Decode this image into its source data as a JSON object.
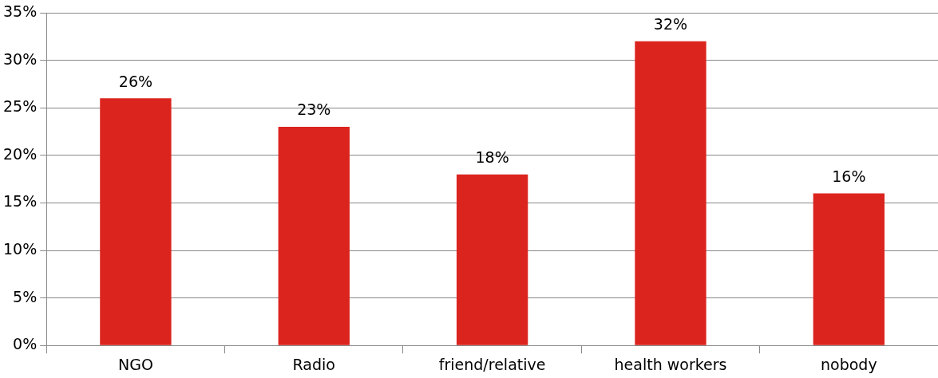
{
  "chart_data": {
    "type": "bar",
    "categories": [
      "NGO",
      "Radio",
      "friend/relative",
      "health workers",
      "nobody"
    ],
    "values": [
      26,
      23,
      18,
      32,
      16
    ],
    "value_labels": [
      "26%",
      "23%",
      "18%",
      "32%",
      "16%"
    ],
    "color": "#dc241f",
    "ylim": [
      0,
      35
    ],
    "yticks": [
      {
        "value": 0,
        "label": "0%"
      },
      {
        "value": 5,
        "label": "5%"
      },
      {
        "value": 10,
        "label": "10%"
      },
      {
        "value": 15,
        "label": "15%"
      },
      {
        "value": 20,
        "label": "20%"
      },
      {
        "value": 25,
        "label": "25%"
      },
      {
        "value": 30,
        "label": "30%"
      },
      {
        "value": 35,
        "label": "35%"
      }
    ],
    "grid": "y",
    "legend": false
  }
}
